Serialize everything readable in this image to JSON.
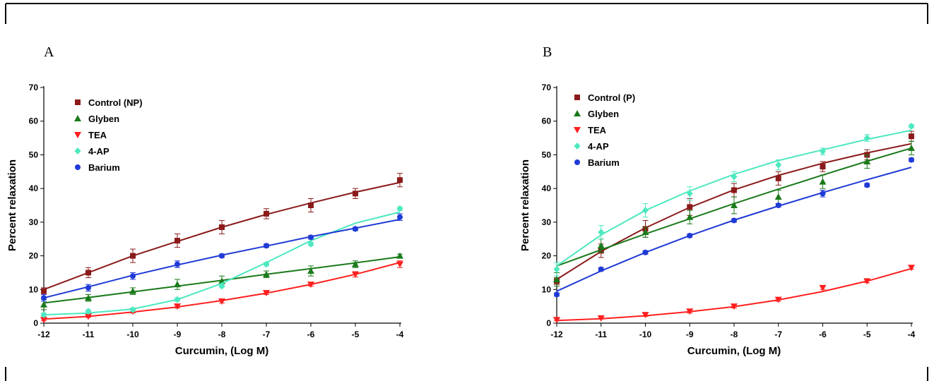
{
  "colors": {
    "Control": "#8b1a1a",
    "Glyben": "#1a7a1a",
    "TEA": "#ff1f1f",
    "4-AP": "#4de8c0",
    "Barium": "#1f3ad6"
  },
  "chart_data": [
    {
      "type": "line",
      "panel_label": "A",
      "xlabel": "Curcumin, (Log M)",
      "ylabel": "Percent relaxation",
      "xlim": [
        -12,
        -4
      ],
      "ylim": [
        0,
        70
      ],
      "x_ticks": [
        -12,
        -11,
        -10,
        -9,
        -8,
        -7,
        -6,
        -5,
        -4
      ],
      "y_ticks": [
        0,
        10,
        20,
        30,
        40,
        50,
        60,
        70
      ],
      "legend_position": "top-left",
      "x": [
        -12,
        -11,
        -10,
        -9,
        -8,
        -7,
        -6,
        -5,
        -4
      ],
      "series": [
        {
          "name": "Control (NP)",
          "key": "Control",
          "marker": "square",
          "values": [
            9.5,
            15,
            20,
            24.5,
            28.5,
            32.5,
            35,
            38.5,
            42.5
          ],
          "errors": [
            1,
            1.5,
            2,
            2,
            2,
            1.5,
            2,
            1.5,
            2
          ],
          "fit": [
            10,
            15,
            20,
            24.3,
            28.5,
            32.3,
            35.7,
            38.9,
            41.8
          ]
        },
        {
          "name": "Glyben",
          "key": "Glyben",
          "marker": "triangle-up",
          "values": [
            5.5,
            7.5,
            9.5,
            11.5,
            12.5,
            14.5,
            15.5,
            17.5,
            20
          ],
          "errors": [
            1.5,
            1,
            1,
            1.5,
            1.5,
            1,
            1.5,
            1,
            0.5
          ],
          "fit": [
            6,
            7.6,
            9.3,
            11,
            12.7,
            14.5,
            16.2,
            17.9,
            19.7
          ]
        },
        {
          "name": "TEA",
          "key": "TEA",
          "marker": "triangle-down",
          "values": [
            1,
            2,
            3.5,
            5,
            6.5,
            9,
            11.5,
            14.5,
            17.5
          ],
          "errors": [
            0.3,
            0.3,
            0.5,
            0.5,
            0.5,
            0.5,
            0.5,
            0.8,
            1
          ],
          "fit": [
            1.2,
            2,
            3.3,
            4.8,
            6.7,
            8.9,
            11.5,
            14.5,
            18
          ]
        },
        {
          "name": "4-AP",
          "key": "4-AP",
          "marker": "diamond",
          "values": [
            2.5,
            3.5,
            4,
            7,
            11,
            17.5,
            23.5,
            28,
            34
          ],
          "errors": [
            0.5,
            0.5,
            0.5,
            0.5,
            0.5,
            0.5,
            0.5,
            0.5,
            0.5
          ],
          "fit": [
            2.5,
            3,
            4.2,
            7,
            11.8,
            18,
            24.5,
            29.7,
            33
          ]
        },
        {
          "name": "Barium",
          "key": "Barium",
          "marker": "circle",
          "values": [
            7.5,
            10.5,
            14,
            17.5,
            20,
            23,
            25.5,
            28,
            31.5
          ],
          "errors": [
            1,
            1,
            1,
            1,
            0.5,
            0.5,
            0.5,
            0.5,
            1
          ],
          "fit": [
            7.5,
            10.8,
            14.2,
            17.3,
            20.2,
            22.9,
            25.7,
            28.2,
            30.8
          ]
        }
      ]
    },
    {
      "type": "line",
      "panel_label": "B",
      "xlabel": "Curcumin, (Log M)",
      "ylabel": "Percent relaxation",
      "xlim": [
        -12,
        -4
      ],
      "ylim": [
        0,
        70
      ],
      "x_ticks": [
        -12,
        -11,
        -10,
        -9,
        -8,
        -7,
        -6,
        -5,
        -4
      ],
      "y_ticks": [
        0,
        10,
        20,
        30,
        40,
        50,
        60,
        70
      ],
      "legend_position": "top-left",
      "x": [
        -12,
        -11,
        -10,
        -9,
        -8,
        -7,
        -6,
        -5,
        -4
      ],
      "series": [
        {
          "name": "Control (P)",
          "key": "Control",
          "marker": "square",
          "values": [
            12.5,
            21.5,
            28,
            34.5,
            39.5,
            43,
            46.5,
            50,
            55.5
          ],
          "errors": [
            1,
            2,
            2.5,
            2.5,
            2,
            2,
            1.5,
            1.5,
            1.5
          ],
          "fit": [
            13,
            21.3,
            28.3,
            34.4,
            39.6,
            43.9,
            47.5,
            50.6,
            53.3
          ]
        },
        {
          "name": "Glyben",
          "key": "Glyben",
          "marker": "triangle-up",
          "values": [
            13,
            23,
            27,
            31.5,
            35,
            37.5,
            42,
            48,
            52
          ],
          "errors": [
            2,
            2,
            1.5,
            2,
            2.5,
            2,
            2,
            2,
            2
          ],
          "fit": [
            17,
            21.8,
            26.5,
            31,
            35.5,
            39.8,
            44,
            48.1,
            52
          ]
        },
        {
          "name": "TEA",
          "key": "TEA",
          "marker": "triangle-down",
          "values": [
            1,
            1.5,
            2.5,
            3.5,
            5,
            7,
            10.5,
            12.5,
            16.5
          ],
          "errors": [
            0.3,
            0.3,
            0.5,
            0.5,
            0.5,
            0.5,
            0.5,
            0.5,
            0.5
          ],
          "fit": [
            0.8,
            1.3,
            2.2,
            3.4,
            4.9,
            6.9,
            9.4,
            12.5,
            16.2
          ]
        },
        {
          "name": "4-AP",
          "key": "4-AP",
          "marker": "diamond",
          "values": [
            16,
            27,
            33.5,
            38.5,
            43.5,
            47,
            51,
            55,
            58.5
          ],
          "errors": [
            2,
            2,
            2,
            2,
            1.5,
            1.5,
            1,
            1,
            0.5
          ],
          "fit": [
            17,
            26.2,
            33.5,
            39.3,
            44.2,
            48.3,
            51.5,
            54.6,
            57.3
          ]
        },
        {
          "name": "Barium",
          "key": "Barium",
          "marker": "circle",
          "values": [
            8.5,
            16,
            21,
            26,
            30.5,
            35,
            38.5,
            41,
            48.5
          ],
          "errors": [
            0.5,
            0.5,
            0.5,
            0.5,
            0.5,
            0.5,
            1,
            0.5,
            0.5
          ],
          "fit": [
            9.5,
            15.5,
            21,
            26,
            30.6,
            34.8,
            38.8,
            42.6,
            46.3
          ]
        }
      ]
    }
  ]
}
